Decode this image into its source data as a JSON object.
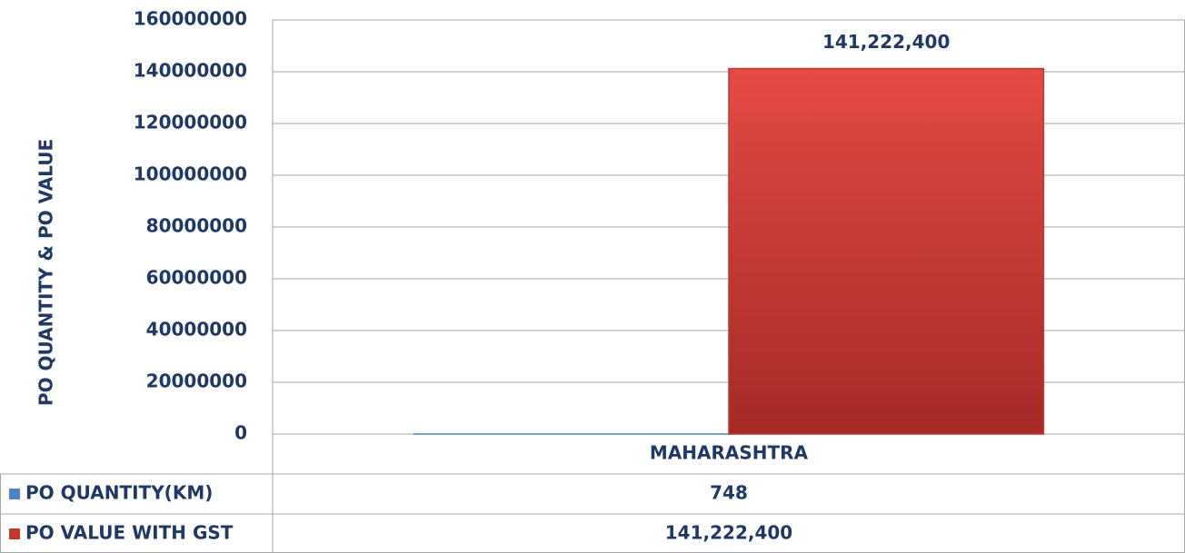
{
  "chart_data": {
    "type": "bar",
    "y_label": "PO QUANTITY & PO VALUE",
    "categories": [
      "MAHARASHTRA"
    ],
    "series": [
      {
        "name": "PO QUANTITY(KM)",
        "color": "#4f81bd",
        "values": [
          748
        ]
      },
      {
        "name": "PO VALUE WITH GST",
        "color": "#c0392b",
        "values": [
          141222400
        ],
        "value_labels": [
          "141,222,400"
        ]
      }
    ],
    "ylim": [
      0,
      160000000
    ],
    "yticks": [
      0,
      20000000,
      40000000,
      60000000,
      80000000,
      100000000,
      120000000,
      140000000,
      160000000
    ],
    "grid": true
  }
}
